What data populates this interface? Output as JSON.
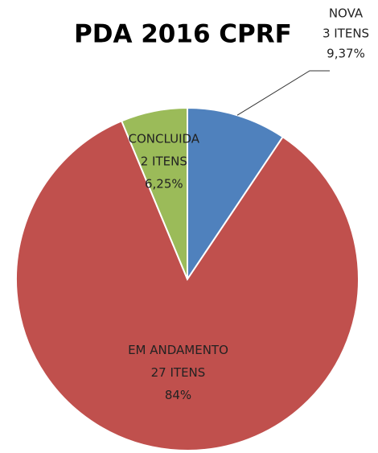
{
  "chart_data": {
    "type": "pie",
    "title": "PDA 2016 CPRF",
    "categories": [
      "NOVA",
      "EM ANDAMENTO",
      "CONCLUIDA"
    ],
    "items": [
      "3 ITENS",
      "27  ITENS",
      "2 ITENS"
    ],
    "values": [
      9.37,
      84,
      6.25
    ],
    "value_labels": [
      "9,37%",
      "84%",
      "6,25%"
    ],
    "colors": [
      "#4f81bd",
      "#c0504d",
      "#9bbb59"
    ]
  }
}
